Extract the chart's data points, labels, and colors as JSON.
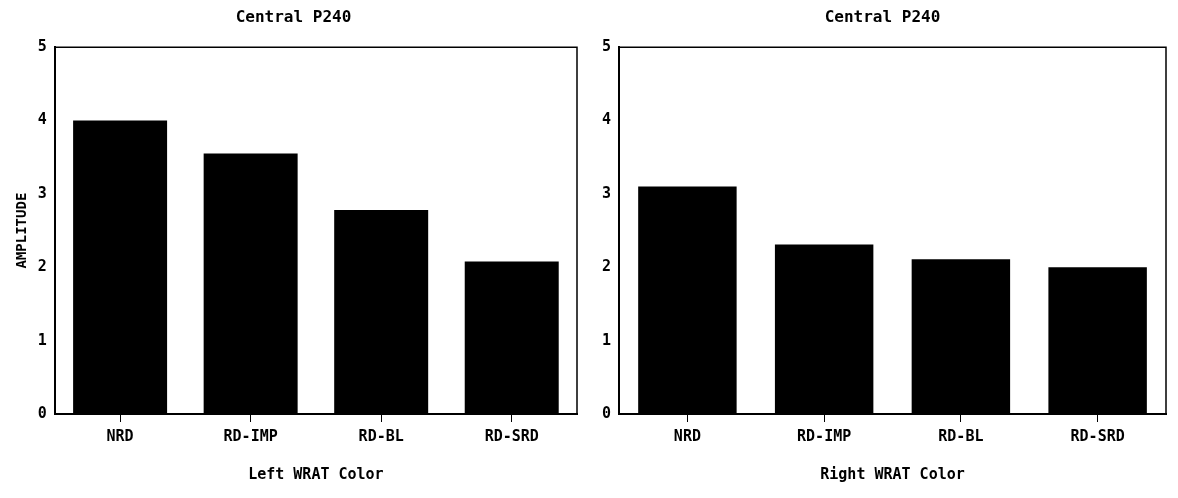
{
  "chart_data": [
    {
      "type": "bar",
      "title": "Central P240",
      "xlabel": "Left WRAT Color",
      "ylabel": "AMPLITUDE",
      "categories": [
        "NRD",
        "RD-IMP",
        "RD-BL",
        "RD-SRD"
      ],
      "values": [
        4.0,
        3.55,
        2.78,
        2.08
      ],
      "color": "#000000",
      "ylim": [
        0,
        5
      ],
      "yticks": [
        0,
        1,
        2,
        3,
        4,
        5
      ],
      "grid": false
    },
    {
      "type": "bar",
      "title": "Central P240",
      "xlabel": "Right WRAT Color",
      "categories": [
        "NRD",
        "RD-IMP",
        "RD-BL",
        "RD-SRD"
      ],
      "values": [
        3.1,
        2.31,
        2.11,
        2.0
      ],
      "color": "#000000",
      "ylim": [
        0,
        5
      ],
      "yticks": [
        0,
        1,
        2,
        3,
        4,
        5
      ],
      "grid": false
    }
  ]
}
